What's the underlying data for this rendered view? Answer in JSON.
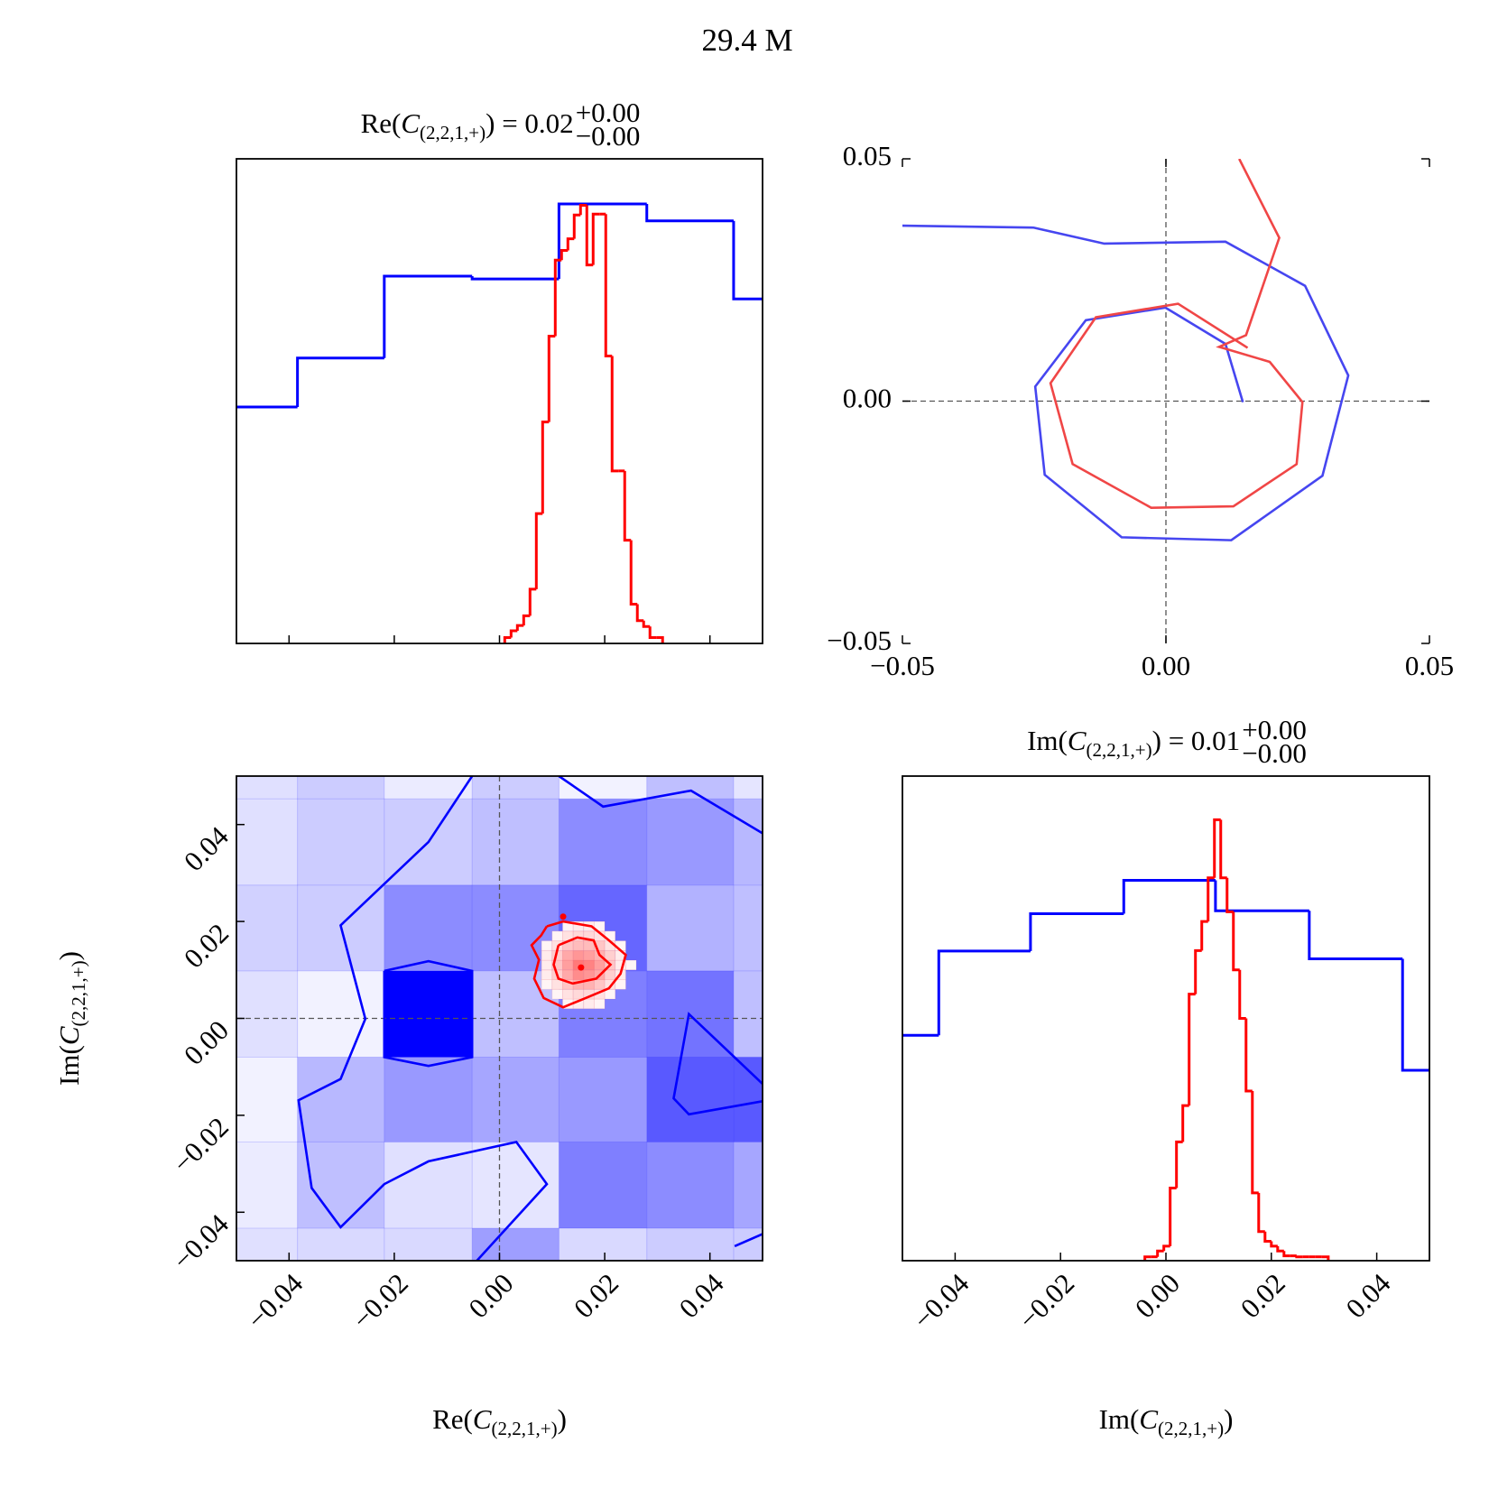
{
  "title": "29.4 M",
  "chart_data": [
    {
      "type": "histogram",
      "title": {
        "pre": "Re(",
        "var": "C",
        "sub": "(2,2,1,+)",
        "post": ") = 0.02",
        "sup": "+0.00",
        "inf": "−0.00"
      },
      "xlim": [
        -0.05,
        0.05
      ],
      "ylim": [
        0,
        1
      ],
      "xticks": [
        -0.04,
        -0.02,
        0,
        0.02,
        0.04
      ],
      "series": [
        {
          "color": "#0000ff",
          "bins": [
            -0.055,
            -0.0384,
            -0.0219,
            -0.0052,
            0.0113,
            0.028,
            0.0445,
            0.061
          ],
          "values": [
            0.488,
            0.589,
            0.758,
            0.752,
            0.907,
            0.872,
            0.711
          ]
        },
        {
          "color": "#ff0000",
          "bins": [
            0.001,
            0.0022,
            0.0034,
            0.0046,
            0.0058,
            0.007,
            0.0082,
            0.0094,
            0.0106,
            0.0118,
            0.013,
            0.0142,
            0.0154,
            0.0166,
            0.0178,
            0.019,
            0.0202,
            0.0214,
            0.0226,
            0.0238,
            0.025,
            0.0262,
            0.0274,
            0.0286,
            0.0298,
            0.031
          ],
          "values": [
            0.012,
            0.026,
            0.037,
            0.057,
            0.112,
            0.268,
            0.457,
            0.634,
            0.791,
            0.811,
            0.835,
            0.884,
            0.904,
            0.781,
            0.886,
            0.886,
            0.593,
            0.356,
            0.356,
            0.213,
            0.081,
            0.047,
            0.035,
            0.012,
            0.012
          ]
        }
      ]
    },
    {
      "type": "line",
      "xlim": [
        -0.05,
        0.05
      ],
      "ylim": [
        -0.05,
        0.05
      ],
      "xticks": [
        {
          "value": -0.05,
          "label": "−0.05"
        },
        {
          "value": 0,
          "label": "0.00"
        },
        {
          "value": 0.05,
          "label": "0.05"
        }
      ],
      "yticks": [
        {
          "value": -0.05,
          "label": "−0.05"
        },
        {
          "value": 0,
          "label": "0.00"
        },
        {
          "value": 0.05,
          "label": "0.05"
        }
      ],
      "vline": 0,
      "hline": 0,
      "series": [
        {
          "color": "#4646f0",
          "x": [
            -0.05,
            -0.0251,
            -0.0117,
            0.0113,
            0.0264,
            0.0346,
            0.0297,
            0.0124,
            -0.0084,
            -0.023,
            -0.0248,
            -0.0152,
            -0.0001,
            0.0113,
            0.0146
          ],
          "y": [
            0.0362,
            0.0358,
            0.0325,
            0.0329,
            0.0238,
            0.0053,
            -0.0154,
            -0.0287,
            -0.0281,
            -0.0152,
            0.003,
            0.0167,
            0.0193,
            0.0118,
            -0.0002
          ]
        },
        {
          "color": "#f04646",
          "x": [
            0.0139,
            0.0215,
            0.0152,
            0.0101,
            0.0197,
            0.0259,
            0.0248,
            0.0128,
            -0.0028,
            -0.0177,
            -0.0219,
            -0.0133,
            0.0023,
            0.0155
          ],
          "y": [
            0.05,
            0.0337,
            0.0136,
            0.0112,
            0.0081,
            -0.0002,
            -0.013,
            -0.0217,
            -0.022,
            -0.013,
            0.0037,
            0.0173,
            0.0201,
            0.011
          ]
        }
      ]
    },
    {
      "type": "hist2d",
      "xlabel": {
        "pre": "Re(",
        "var": "C",
        "sub": "(2,2,1,+)",
        "post": ")"
      },
      "ylabel": {
        "pre": "Im(",
        "var": "C",
        "sub": "(2,2,1,+)",
        "post": ")"
      },
      "xlim": [
        -0.05,
        0.05
      ],
      "ylim": [
        -0.05,
        0.05
      ],
      "xticks": [
        {
          "value": -0.04,
          "label": "−0.04"
        },
        {
          "value": -0.02,
          "label": "−0.02"
        },
        {
          "value": 0,
          "label": "0.00"
        },
        {
          "value": 0.02,
          "label": "0.02"
        },
        {
          "value": 0.04,
          "label": "0.04"
        }
      ],
      "yticks": [
        {
          "value": -0.04,
          "label": "−0.04"
        },
        {
          "value": -0.02,
          "label": "−0.02"
        },
        {
          "value": 0,
          "label": "0.00"
        },
        {
          "value": 0.02,
          "label": "0.02"
        },
        {
          "value": 0.04,
          "label": "0.04"
        }
      ],
      "vline": 0,
      "hline": 0,
      "layers": [
        {
          "color": "#0000ff",
          "xbins": [
            -0.055,
            -0.0384,
            -0.0219,
            -0.0052,
            0.0113,
            0.028,
            0.0445,
            0.061
          ],
          "ybins": [
            -0.061,
            -0.0433,
            -0.0255,
            -0.008,
            0.0098,
            0.0275,
            0.0453,
            0.063
          ],
          "values": [
            [
              0.12,
              0.15,
              0.15,
              0.38,
              0.15,
              0.2,
              0.2
            ],
            [
              0.08,
              0.25,
              0.12,
              0.1,
              0.5,
              0.45,
              0.35
            ],
            [
              0.05,
              0.28,
              0.4,
              0.35,
              0.4,
              0.65,
              0.65
            ],
            [
              0.12,
              0.05,
              1.0,
              0.25,
              0.5,
              0.55,
              0.25
            ],
            [
              0.18,
              0.2,
              0.45,
              0.45,
              0.6,
              0.3,
              0.25
            ],
            [
              0.12,
              0.2,
              0.2,
              0.25,
              0.45,
              0.4,
              0.28
            ],
            [
              0.12,
              0.2,
              0.08,
              0.2,
              0.05,
              0.25,
              0.1
            ]
          ]
        },
        {
          "color": "#ff0000",
          "xbins": [
            0.006,
            0.008,
            0.01,
            0.012,
            0.014,
            0.016,
            0.018,
            0.02,
            0.022,
            0.024,
            0.026
          ],
          "ybins": [
            0.002,
            0.004,
            0.006,
            0.008,
            0.01,
            0.012,
            0.014,
            0.016,
            0.018,
            0.02
          ],
          "values": [
            [
              0,
              0,
              0,
              0.05,
              0.1,
              0.1,
              0.05,
              0,
              0,
              0
            ],
            [
              0,
              0,
              0.05,
              0.15,
              0.2,
              0.2,
              0.15,
              0.05,
              0,
              0
            ],
            [
              0,
              0.05,
              0.15,
              0.3,
              0.4,
              0.4,
              0.3,
              0.15,
              0.05,
              0
            ],
            [
              0,
              0.1,
              0.25,
              0.45,
              0.6,
              0.55,
              0.45,
              0.25,
              0.1,
              0
            ],
            [
              0,
              0.1,
              0.3,
              0.5,
              0.7,
              0.65,
              0.5,
              0.3,
              0.1,
              0.05
            ],
            [
              0,
              0.1,
              0.25,
              0.45,
              0.55,
              0.5,
              0.4,
              0.25,
              0.1,
              0
            ],
            [
              0,
              0.05,
              0.15,
              0.3,
              0.35,
              0.35,
              0.3,
              0.15,
              0.05,
              0
            ],
            [
              0,
              0,
              0.05,
              0.15,
              0.2,
              0.2,
              0.15,
              0.05,
              0,
              0
            ],
            [
              0,
              0,
              0,
              0.05,
              0.1,
              0.1,
              0.05,
              0,
              0,
              0
            ]
          ]
        }
      ],
      "contours": [
        {
          "color": "#0000ff",
          "x": [
            -0.0052,
            -0.0135,
            -0.0302,
            -0.0255,
            -0.0302,
            -0.0382,
            -0.0357,
            -0.0302,
            -0.0219,
            -0.0135,
            0.0032,
            0.009,
            -0.0043
          ],
          "y": [
            0.05,
            0.0364,
            0.0192,
            -0.0001,
            -0.0125,
            -0.0169,
            -0.035,
            -0.0431,
            -0.0342,
            -0.0295,
            -0.0255,
            -0.0342,
            -0.05
          ]
        },
        {
          "color": "#0000ff",
          "x": [
            0.0113,
            0.0197,
            0.0364,
            0.05
          ],
          "y": [
            0.05,
            0.0437,
            0.047,
            0.0382
          ]
        },
        {
          "color": "#0000ff",
          "x": [
            0.05,
            0.036,
            0.0331,
            0.036,
            0.05
          ],
          "y": [
            -0.0135,
            0.0009,
            -0.0165,
            -0.0198,
            -0.0171
          ]
        },
        {
          "color": "#0000ff",
          "x": [
            0.0447,
            0.05
          ],
          "y": [
            -0.047,
            -0.0445
          ]
        },
        {
          "color": "#0000ff",
          "x": [
            -0.0219,
            -0.0135,
            -0.0052,
            -0.0052,
            -0.0135,
            -0.0219,
            -0.0219
          ],
          "y": [
            0.0098,
            0.0118,
            0.0098,
            -0.008,
            -0.0098,
            -0.008,
            0.0098
          ]
        },
        {
          "color": "#ff0000",
          "x": [
            0.009,
            0.0121,
            0.0175,
            0.0208,
            0.024,
            0.023,
            0.0208,
            0.0164,
            0.0121,
            0.0084,
            0.0066,
            0.0075,
            0.0061,
            0.0079,
            0.009
          ],
          "y": [
            0.019,
            0.02,
            0.019,
            0.0161,
            0.0131,
            0.0092,
            0.0062,
            0.0042,
            0.0023,
            0.0042,
            0.0082,
            0.0121,
            0.0151,
            0.0171,
            0.019
          ]
        },
        {
          "color": "#ff0000",
          "x": [
            0.0112,
            0.0148,
            0.0179,
            0.019,
            0.0211,
            0.0184,
            0.0139,
            0.0112,
            0.0103,
            0.0112
          ],
          "y": [
            0.0151,
            0.0167,
            0.0161,
            0.0131,
            0.0111,
            0.0082,
            0.0072,
            0.0082,
            0.0111,
            0.0151
          ]
        }
      ],
      "points": {
        "color": "#ff0000",
        "x": [
          0.0121,
          0.0155
        ],
        "y": [
          0.021,
          0.0105
        ]
      }
    },
    {
      "type": "histogram",
      "title": {
        "pre": "Im(",
        "var": "C",
        "sub": "(2,2,1,+)",
        "post": ") = 0.01",
        "sup": "+0.00",
        "inf": "−0.00"
      },
      "xlabel": {
        "pre": "Im(",
        "var": "C",
        "sub": "(2,2,1,+)",
        "post": ")"
      },
      "xlim": [
        -0.05,
        0.05
      ],
      "ylim": [
        0,
        1
      ],
      "xticks": [
        {
          "value": -0.04,
          "label": "−0.04"
        },
        {
          "value": -0.02,
          "label": "−0.02"
        },
        {
          "value": 0,
          "label": "0.00"
        },
        {
          "value": 0.02,
          "label": "0.02"
        },
        {
          "value": 0.04,
          "label": "0.04"
        }
      ],
      "series": [
        {
          "color": "#0000ff",
          "bins": [
            -0.0608,
            -0.0431,
            -0.0257,
            -0.008,
            0.0094,
            0.0272,
            0.0449,
            0.0626
          ],
          "values": [
            0.465,
            0.639,
            0.716,
            0.785,
            0.722,
            0.623,
            0.393
          ]
        },
        {
          "color": "#ff0000",
          "bins": [
            -0.004,
            -0.0028,
            -0.0016,
            -0.0004,
            0.0008,
            0.002,
            0.0032,
            0.0044,
            0.0056,
            0.0068,
            0.008,
            0.0092,
            0.0104,
            0.0116,
            0.0128,
            0.014,
            0.0152,
            0.0164,
            0.0176,
            0.0188,
            0.02,
            0.0212,
            0.0224,
            0.0236,
            0.0248,
            0.026,
            0.0272,
            0.0284,
            0.0296,
            0.0308
          ],
          "values": [
            0.008,
            0.008,
            0.02,
            0.03,
            0.15,
            0.245,
            0.32,
            0.55,
            0.64,
            0.7,
            0.79,
            0.91,
            0.79,
            0.72,
            0.6,
            0.5,
            0.35,
            0.14,
            0.06,
            0.04,
            0.03,
            0.02,
            0.01,
            0.01,
            0.008,
            0.008,
            0.008,
            0.008,
            0.008
          ]
        }
      ]
    }
  ]
}
